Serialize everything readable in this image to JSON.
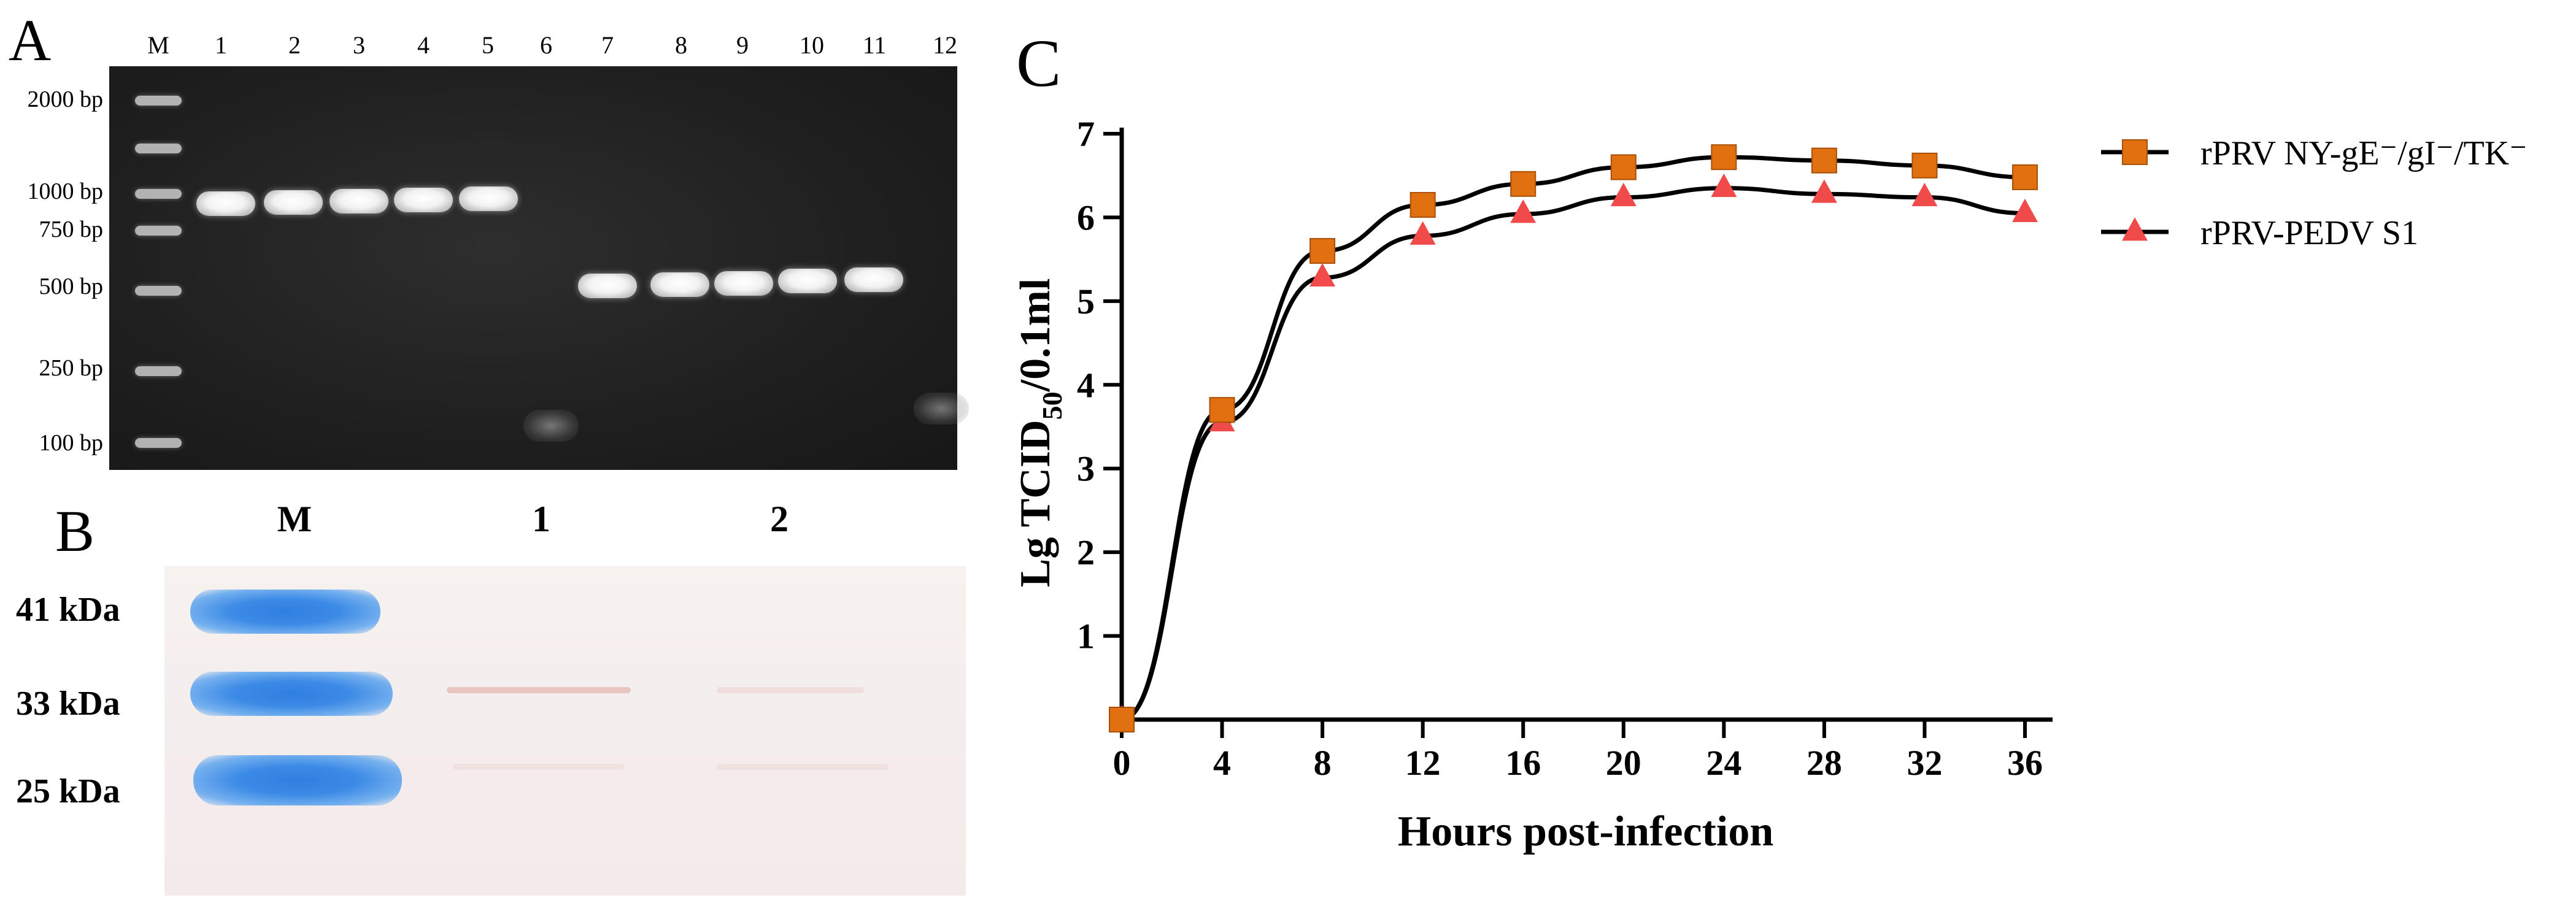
{
  "panels": {
    "a": {
      "letter": "A",
      "lanes": [
        "M",
        "1",
        "2",
        "3",
        "4",
        "5",
        "6",
        "7",
        "8",
        "9",
        "10",
        "11",
        "12"
      ],
      "markers": [
        "2000 bp",
        "1000 bp",
        "750 bp",
        "500 bp",
        "250 bp",
        "100 bp"
      ]
    },
    "b": {
      "letter": "B",
      "lanes": [
        "M",
        "1",
        "2"
      ],
      "markers": [
        "41 kDa",
        "33 kDa",
        "25 kDa"
      ]
    },
    "c": {
      "letter": "C"
    }
  },
  "chart_data": {
    "type": "line",
    "title": "",
    "xlabel": "Hours post-infection",
    "ylabel_parts": [
      "Lg TCID",
      "50",
      "/0.1ml"
    ],
    "x": [
      0,
      4,
      8,
      12,
      16,
      20,
      24,
      28,
      32,
      36
    ],
    "xticks": [
      0,
      4,
      8,
      12,
      16,
      20,
      24,
      28,
      32,
      36
    ],
    "yticks": [
      1,
      2,
      3,
      4,
      5,
      6,
      7
    ],
    "xlim": [
      0,
      36
    ],
    "ylim": [
      0,
      7
    ],
    "grid": false,
    "legend_position": "top-right",
    "series": [
      {
        "name": "rPRV NY-gE⁻/gI⁻/TK⁻",
        "marker": "square",
        "color": "#e07010",
        "values": [
          0,
          3.7,
          5.6,
          6.15,
          6.4,
          6.6,
          6.72,
          6.68,
          6.62,
          6.48
        ]
      },
      {
        "name": "rPRV-PEDV S1",
        "marker": "triangle",
        "color": "#f04a4a",
        "values": [
          0,
          3.55,
          5.28,
          5.78,
          6.04,
          6.24,
          6.35,
          6.28,
          6.24,
          6.05
        ]
      }
    ]
  }
}
